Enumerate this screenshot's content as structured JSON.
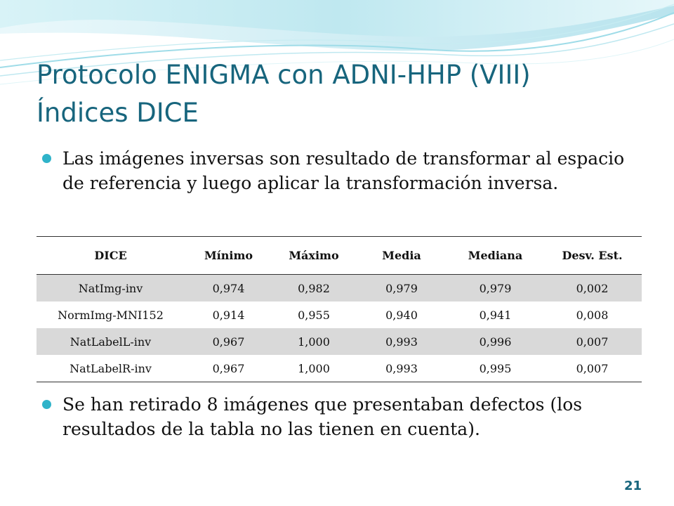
{
  "slide": {
    "title_line1": "Protocolo ENIGMA con ADNI-HHP (VIII)",
    "title_line2": "Índices DICE",
    "bullets": [
      "Las imágenes inversas son resultado de transformar al espacio de referencia y luego aplicar la transformación inversa.",
      "Se han retirado 8 imágenes que presentaban defectos (los resultados de la tabla no las tienen en cuenta)."
    ],
    "page_number": "21"
  },
  "table": {
    "headers": [
      "DICE",
      "Mínimo",
      "Máximo",
      "Media",
      "Mediana",
      "Desv. Est."
    ],
    "rows": [
      [
        "NatImg-inv",
        "0,974",
        "0,982",
        "0,979",
        "0,979",
        "0,002"
      ],
      [
        "NormImg-MNI152",
        "0,914",
        "0,955",
        "0,940",
        "0,941",
        "0,008"
      ],
      [
        "NatLabelL-inv",
        "0,967",
        "1,000",
        "0,993",
        "0,996",
        "0,007"
      ],
      [
        "NatLabelR-inv",
        "0,967",
        "1,000",
        "0,993",
        "0,995",
        "0,007"
      ]
    ]
  },
  "colors": {
    "title": "#17657d",
    "bullet": "#2fb3c9",
    "row_shade": "#d9d9d9",
    "wave_light": "#cfeff4",
    "wave_mid": "#9fdce8"
  },
  "icons": {
    "bullet_marker": "circle-bullet-icon"
  }
}
